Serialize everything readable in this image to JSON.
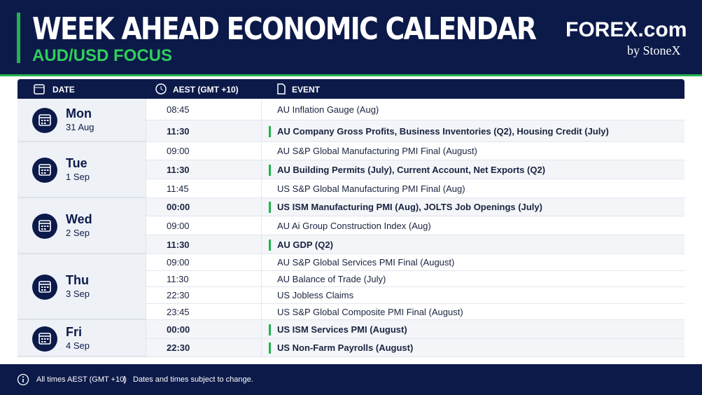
{
  "header": {
    "title": "WEEK AHEAD ECONOMIC CALENDAR",
    "subtitle": "AUD/USD FOCUS",
    "logo": "FOREX.com",
    "logo_sub": "by StoneX"
  },
  "table": {
    "columns": [
      "DATE",
      "AEST (GMT +10)",
      "EVENT"
    ],
    "days": [
      {
        "day": "Mon",
        "date": "31 Aug",
        "events": [
          {
            "time": "08:45",
            "event": "AU Inflation Gauge (Aug)",
            "highlight": false
          },
          {
            "time": "11:30",
            "event": "AU Company Gross Profits, Business Inventories (Q2), Housing Credit (July)",
            "highlight": true
          }
        ]
      },
      {
        "day": "Tue",
        "date": "1 Sep",
        "events": [
          {
            "time": "09:00",
            "event": "AU S&P Global Manufacturing PMI Final (August)",
            "highlight": false
          },
          {
            "time": "11:30",
            "event": "AU Building Permits (July), Current Account, Net Exports (Q2)",
            "highlight": true
          },
          {
            "time": "11:45",
            "event": "US S&P Global Manufacturing PMI Final (Aug)",
            "highlight": false
          }
        ]
      },
      {
        "day": "Wed",
        "date": "2 Sep",
        "events": [
          {
            "time": "00:00",
            "event": "US ISM Manufacturing PMI (Aug), JOLTS Job Openings (July)",
            "highlight": true
          },
          {
            "time": "09:00",
            "event": "AU Ai Group Construction Index (Aug)",
            "highlight": false
          },
          {
            "time": "11:30",
            "event": "AU GDP (Q2)",
            "highlight": true
          }
        ]
      },
      {
        "day": "Thu",
        "date": "3 Sep",
        "events": [
          {
            "time": "09:00",
            "event": "AU S&P Global Services PMI Final (August)",
            "highlight": false
          },
          {
            "time": "11:30",
            "event": "AU Balance of Trade (July)",
            "highlight": false
          },
          {
            "time": "22:30",
            "event": "US Jobless Claims",
            "highlight": false
          },
          {
            "time": "23:45",
            "event": "US S&P Global Composite PMI Final (August)",
            "highlight": false
          }
        ]
      },
      {
        "day": "Fri",
        "date": "4 Sep",
        "events": [
          {
            "time": "00:00",
            "event": "US ISM Services PMI (August)",
            "highlight": true
          },
          {
            "time": "22:30",
            "event": "US Non-Farm Payrolls (August)",
            "highlight": true
          }
        ]
      }
    ]
  },
  "footer": {
    "note": "All times AEST (GMT +10)",
    "separator": "|",
    "disclaimer": "Dates and times subject to change."
  }
}
